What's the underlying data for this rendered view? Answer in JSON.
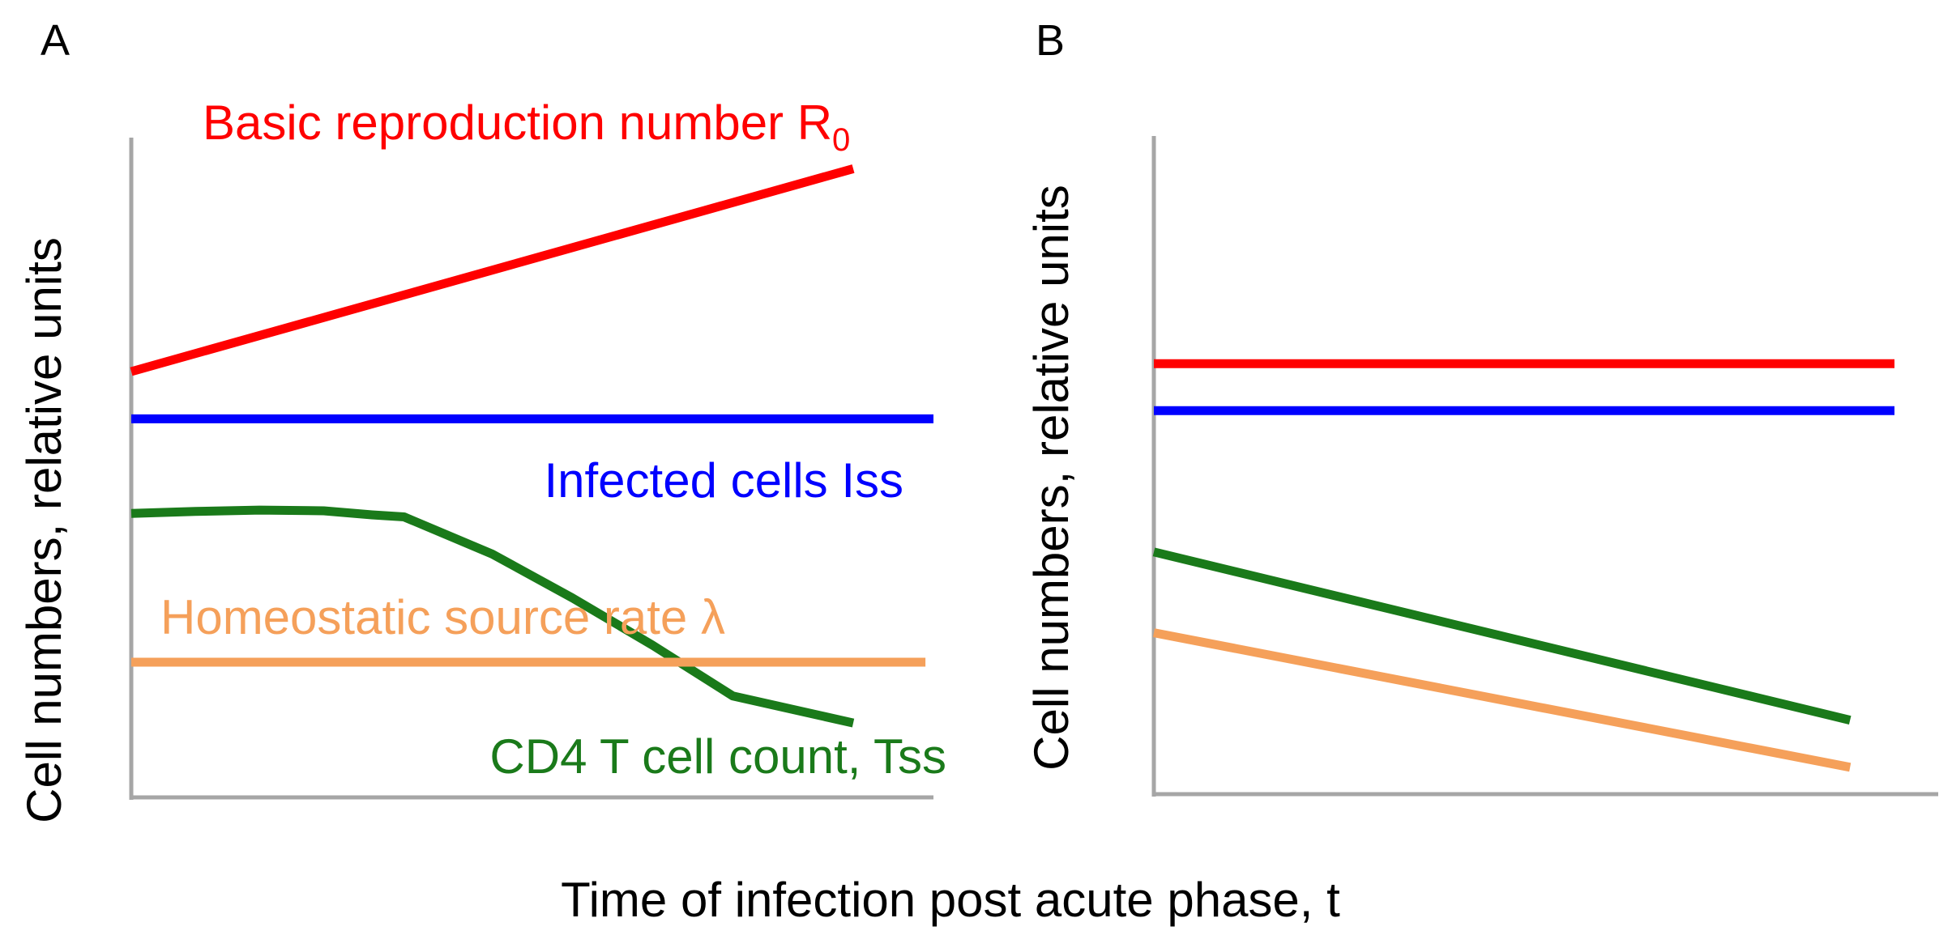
{
  "colors": {
    "r0": "#ff0000",
    "infected": "#0000ff",
    "cd4": "#1a7a1a",
    "source": "#f5a05a",
    "axis": "#a6a6a6",
    "text": "#000000"
  },
  "shared": {
    "xlabel": "Time of infection post acute phase, t"
  },
  "chart_data": [
    {
      "panel": "A",
      "type": "line",
      "ylabel": "Cell numbers, relative units",
      "xlim": [
        0,
        100
      ],
      "ylim": [
        0,
        100
      ],
      "series": [
        {
          "name": "Basic reproduction number R0",
          "label_main": "Basic reproduction number R",
          "label_sub": "0",
          "color_key": "r0",
          "x": [
            0,
            90
          ],
          "y": [
            63,
            93
          ]
        },
        {
          "name": "Infected cells Iss",
          "label_main": "Infected cells Iss",
          "color_key": "infected",
          "x": [
            0,
            100
          ],
          "y": [
            56,
            56
          ]
        },
        {
          "name": "CD4 T cell count, Tss",
          "label_main": "CD4 T cell count, Tss",
          "color_key": "cd4",
          "x": [
            0,
            8,
            16,
            24,
            30,
            34,
            45,
            55,
            65,
            75,
            90
          ],
          "y": [
            42,
            42.3,
            42.5,
            42.4,
            41.8,
            41.5,
            36,
            29.5,
            22.5,
            15,
            11
          ]
        },
        {
          "name": "Homeostatic source rate λ",
          "label_main": "Homeostatic source rate λ",
          "color_key": "source",
          "x": [
            0,
            99
          ],
          "y": [
            20,
            20
          ]
        }
      ]
    },
    {
      "panel": "B",
      "type": "line",
      "ylabel": "Cell numbers, relative units",
      "xlim": [
        0,
        100
      ],
      "ylim": [
        0,
        100
      ],
      "series": [
        {
          "name": "Basic reproduction number R0",
          "color_key": "r0",
          "x": [
            0,
            100
          ],
          "y": [
            64,
            64
          ]
        },
        {
          "name": "Infected cells Iss",
          "color_key": "infected",
          "x": [
            0,
            100
          ],
          "y": [
            57,
            57
          ]
        },
        {
          "name": "CD4 T cell count, Tss",
          "color_key": "cd4",
          "x": [
            0,
            94
          ],
          "y": [
            36,
            11
          ]
        },
        {
          "name": "Homeostatic source rate λ",
          "color_key": "source",
          "x": [
            0,
            94
          ],
          "y": [
            24,
            4
          ]
        }
      ]
    }
  ]
}
